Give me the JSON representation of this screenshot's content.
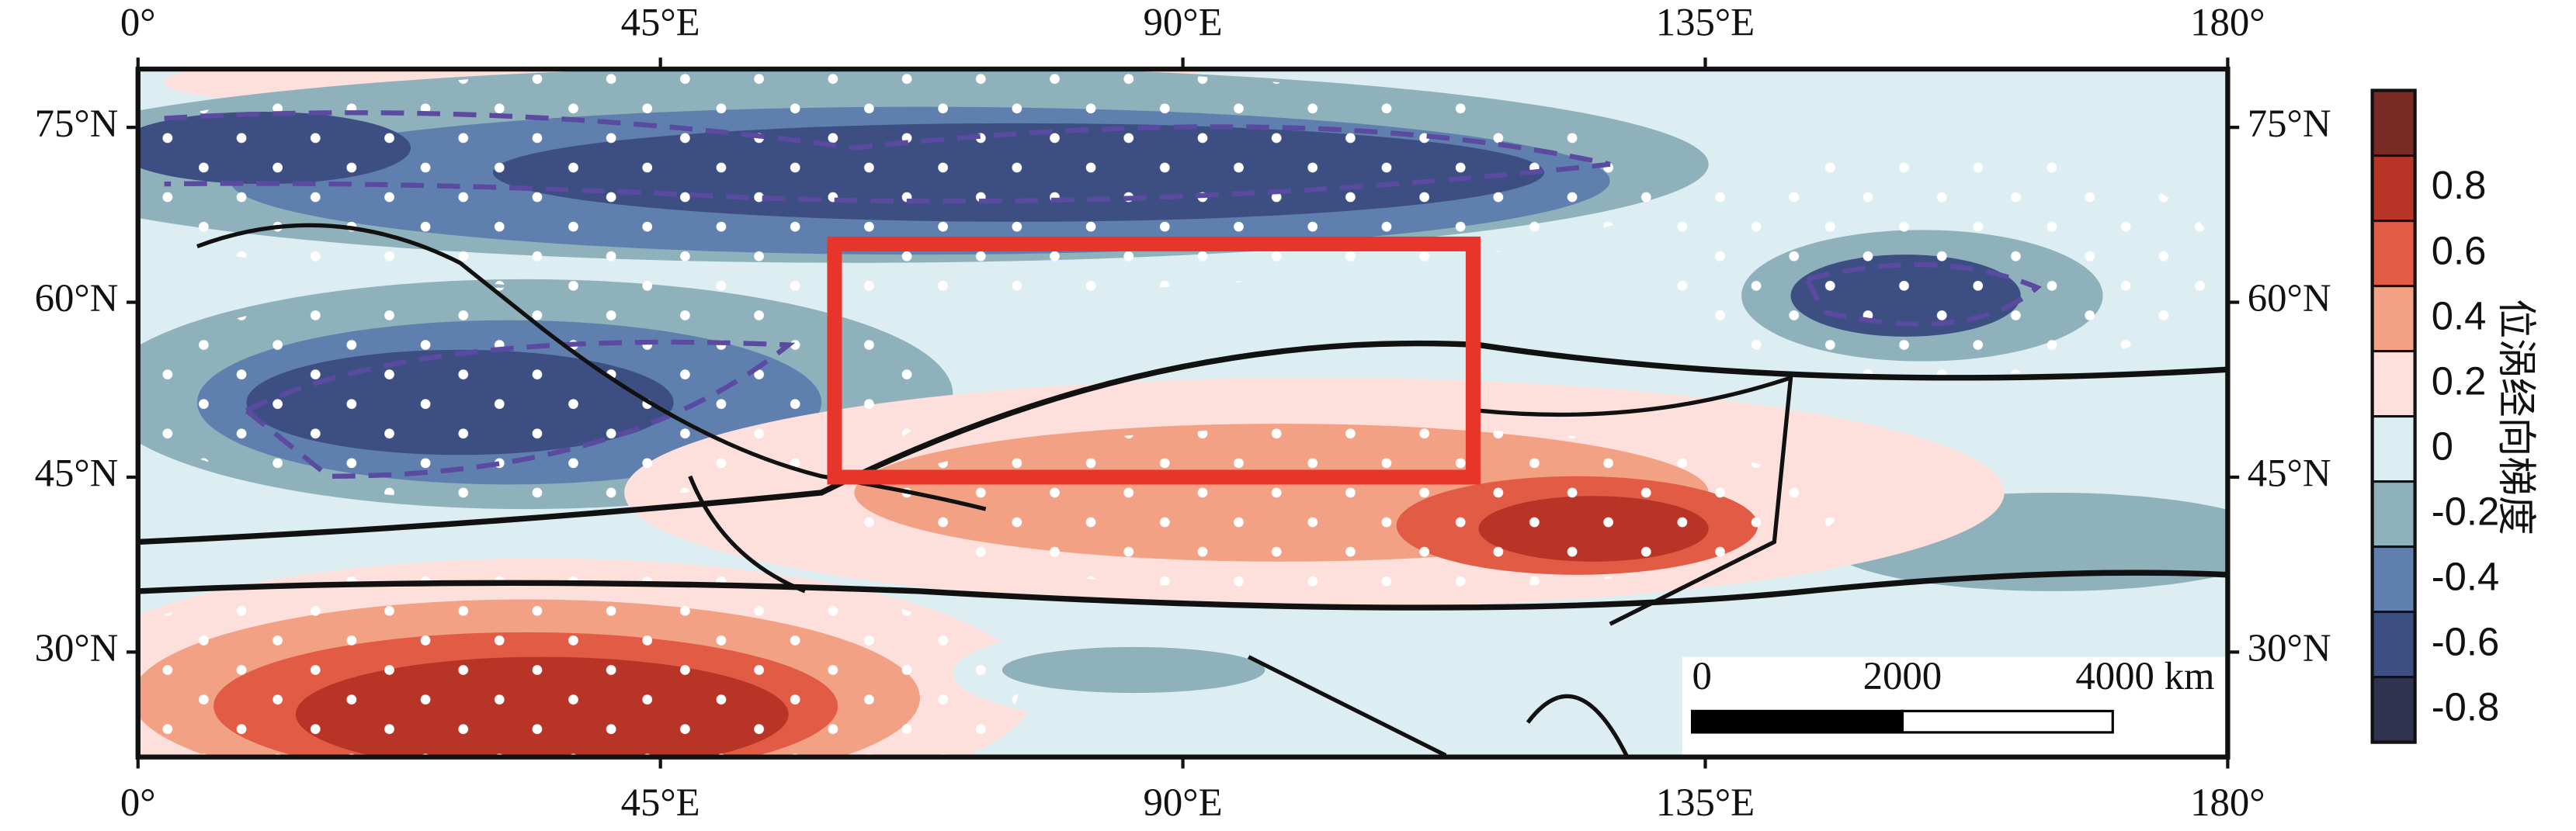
{
  "map": {
    "xlim": [
      0,
      180
    ],
    "ylim": [
      21,
      80
    ],
    "xticks": [
      {
        "value": 0,
        "label": "0°"
      },
      {
        "value": 45,
        "label": "45°E"
      },
      {
        "value": 90,
        "label": "90°E"
      },
      {
        "value": 135,
        "label": "135°E"
      },
      {
        "value": 180,
        "label": "180°"
      }
    ],
    "yticks": [
      {
        "value": 30,
        "label": "30°N"
      },
      {
        "value": 45,
        "label": "45°N"
      },
      {
        "value": 60,
        "label": "60°N"
      },
      {
        "value": 75,
        "label": "75°N"
      }
    ],
    "region": {
      "lon": [
        60,
        115
      ],
      "lat": [
        45,
        65
      ],
      "color": "#e8352c"
    },
    "scalebar": {
      "ticks": [
        0,
        2000,
        {
          "value": 4000,
          "label": "4000 km"
        }
      ]
    },
    "colorbar": {
      "label": "位涡经向梯度",
      "lim": [
        -1,
        1
      ],
      "ticks": [
        -0.8,
        -0.6,
        -0.4,
        -0.2,
        0,
        0.2,
        0.4,
        0.6,
        0.8
      ],
      "colors": [
        "#2f3350",
        "#3d4f82",
        "#5f7fae",
        "#8fb1bb",
        "#ddeef3",
        "#fde0dc",
        "#f2a184",
        "#e25b45",
        "#b83427",
        "#7a2a24"
      ]
    }
  }
}
